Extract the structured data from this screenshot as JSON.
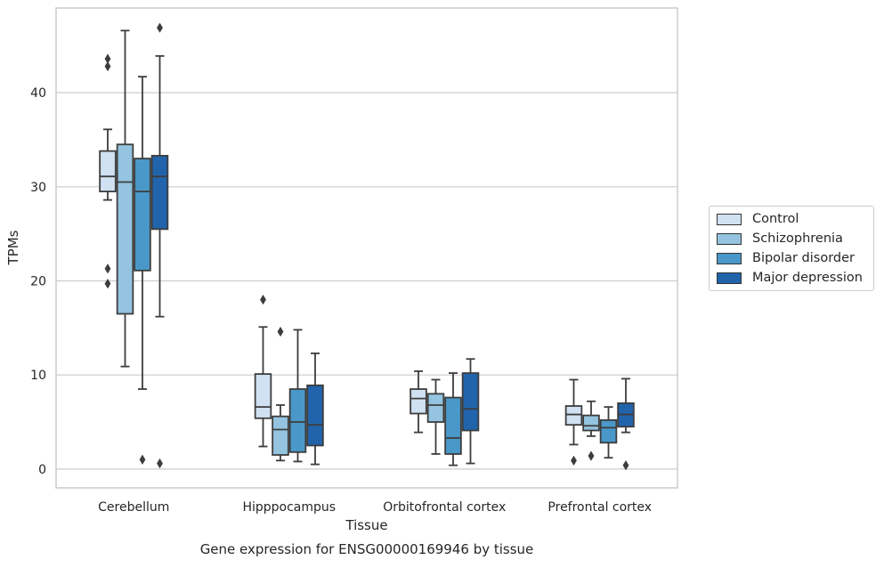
{
  "chart_data": {
    "type": "box",
    "title": "Gene expression for ENSG00000169946 by tissue",
    "xlabel": "Tissue",
    "ylabel": "TPMs",
    "ylim": [
      -2,
      49
    ],
    "yticks": [
      0,
      10,
      20,
      30,
      40
    ],
    "grid": "horizontal",
    "legend_position": "right",
    "categories": [
      "Cerebellum",
      "Hipppocampus",
      "Orbitofrontal cortex",
      "Prefrontal cortex"
    ],
    "series": [
      {
        "name": "Control",
        "color": "#d0e1f2",
        "boxes": [
          {
            "whislo": 28.6,
            "q1": 29.5,
            "med": 31.1,
            "q3": 33.8,
            "whishi": 36.1,
            "fliers": [
              43.6,
              42.8,
              21.3,
              19.7
            ]
          },
          {
            "whislo": 2.4,
            "q1": 5.4,
            "med": 6.6,
            "q3": 10.1,
            "whishi": 15.1,
            "fliers": [
              18.0
            ]
          },
          {
            "whislo": 3.9,
            "q1": 5.9,
            "med": 7.5,
            "q3": 8.5,
            "whishi": 10.4,
            "fliers": []
          },
          {
            "whislo": 2.6,
            "q1": 4.7,
            "med": 5.8,
            "q3": 6.7,
            "whishi": 9.5,
            "fliers": [
              0.9
            ]
          }
        ]
      },
      {
        "name": "Schizophrenia",
        "color": "#94c4df",
        "boxes": [
          {
            "whislo": 10.9,
            "q1": 16.5,
            "med": 30.5,
            "q3": 34.5,
            "whishi": 46.6,
            "fliers": []
          },
          {
            "whislo": 0.9,
            "q1": 1.5,
            "med": 4.2,
            "q3": 5.6,
            "whishi": 6.8,
            "fliers": [
              14.6
            ]
          },
          {
            "whislo": 1.6,
            "q1": 5.0,
            "med": 6.8,
            "q3": 8.0,
            "whishi": 9.5,
            "fliers": []
          },
          {
            "whislo": 3.5,
            "q1": 4.1,
            "med": 4.6,
            "q3": 5.7,
            "whishi": 7.2,
            "fliers": [
              1.4
            ]
          }
        ]
      },
      {
        "name": "Bipolar disorder",
        "color": "#4a98c9",
        "boxes": [
          {
            "whislo": 8.5,
            "q1": 21.1,
            "med": 29.5,
            "q3": 33.0,
            "whishi": 41.7,
            "fliers": [
              1.0
            ]
          },
          {
            "whislo": 0.8,
            "q1": 1.8,
            "med": 5.0,
            "q3": 8.5,
            "whishi": 14.8,
            "fliers": []
          },
          {
            "whislo": 0.4,
            "q1": 1.6,
            "med": 3.3,
            "q3": 7.6,
            "whishi": 10.2,
            "fliers": []
          },
          {
            "whislo": 1.2,
            "q1": 2.8,
            "med": 4.4,
            "q3": 5.2,
            "whishi": 6.6,
            "fliers": []
          }
        ]
      },
      {
        "name": "Major depression",
        "color": "#2164ab",
        "boxes": [
          {
            "whislo": 16.2,
            "q1": 25.5,
            "med": 31.1,
            "q3": 33.3,
            "whishi": 43.9,
            "fliers": [
              46.9,
              0.6
            ]
          },
          {
            "whislo": 0.5,
            "q1": 2.5,
            "med": 4.7,
            "q3": 8.9,
            "whishi": 12.3,
            "fliers": []
          },
          {
            "whislo": 0.6,
            "q1": 4.1,
            "med": 6.4,
            "q3": 10.2,
            "whishi": 11.7,
            "fliers": []
          },
          {
            "whislo": 3.9,
            "q1": 4.5,
            "med": 5.8,
            "q3": 7.0,
            "whishi": 9.6,
            "fliers": [
              0.4
            ]
          }
        ]
      }
    ]
  }
}
